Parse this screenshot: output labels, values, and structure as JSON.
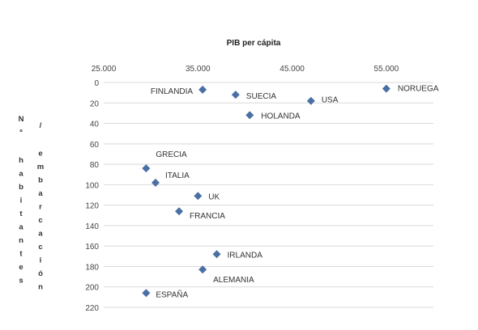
{
  "chart_data": {
    "type": "scatter",
    "title": "PIB per cápita",
    "xlabel": "PIB per cápita",
    "ylabel": "Nº habitantes / embarcación",
    "ylabel_left": "Nº habitantes",
    "ylabel_right": "/ embarcación",
    "x_axis_position": "top",
    "y_axis_reversed": true,
    "xlim": [
      25000,
      60000
    ],
    "ylim": [
      0,
      220
    ],
    "x_ticks": [
      25000,
      35000,
      45000,
      55000
    ],
    "x_tick_labels": [
      "25.000",
      "35.000",
      "45.000",
      "55.000"
    ],
    "y_ticks": [
      0,
      20,
      40,
      60,
      80,
      100,
      120,
      140,
      160,
      180,
      200,
      220
    ],
    "grid": true,
    "marker": "diamond",
    "marker_color": "#4a6fa5",
    "points": [
      {
        "label": "FINLANDIA",
        "x": 35500,
        "y": 7
      },
      {
        "label": "SUECIA",
        "x": 39000,
        "y": 12
      },
      {
        "label": "USA",
        "x": 47000,
        "y": 18
      },
      {
        "label": "NORUEGA",
        "x": 55000,
        "y": 6
      },
      {
        "label": "HOLANDA",
        "x": 40500,
        "y": 32
      },
      {
        "label": "GRECIA",
        "x": 29500,
        "y": 84
      },
      {
        "label": "ITALIA",
        "x": 30500,
        "y": 98
      },
      {
        "label": "UK",
        "x": 35000,
        "y": 111
      },
      {
        "label": "FRANCIA",
        "x": 33000,
        "y": 126
      },
      {
        "label": "IRLANDA",
        "x": 37000,
        "y": 168
      },
      {
        "label": "ALEMANIA",
        "x": 35500,
        "y": 183
      },
      {
        "label": "ESPAÑA",
        "x": 29500,
        "y": 206
      }
    ]
  }
}
